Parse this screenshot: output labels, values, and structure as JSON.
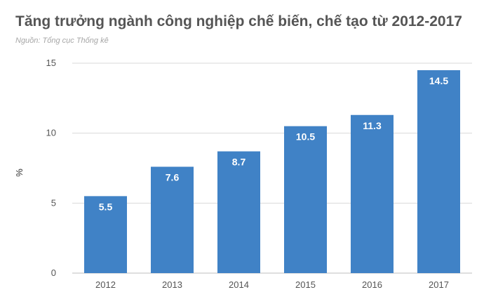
{
  "chart_data": {
    "type": "bar",
    "title": "Tăng trưởng ngành công nghiệp chế biến, chế tạo từ 2012-2017",
    "subtitle": "Nguồn: Tổng cục Thống kê",
    "categories": [
      "2012",
      "2013",
      "2014",
      "2015",
      "2016",
      "2017"
    ],
    "values": [
      5.5,
      7.6,
      8.7,
      10.5,
      11.3,
      14.5
    ],
    "data_labels": [
      "5.5",
      "7.6",
      "8.7",
      "10.5",
      "11.3",
      "14.5"
    ],
    "ylabel": "%",
    "xlabel": "",
    "ylim": [
      0,
      15
    ],
    "yticks": [
      0,
      5,
      10,
      15
    ],
    "grid": true,
    "legend": "none",
    "bar_color": "#4082c6",
    "grid_color": "#d9d9d9",
    "text_color": "#555555"
  }
}
